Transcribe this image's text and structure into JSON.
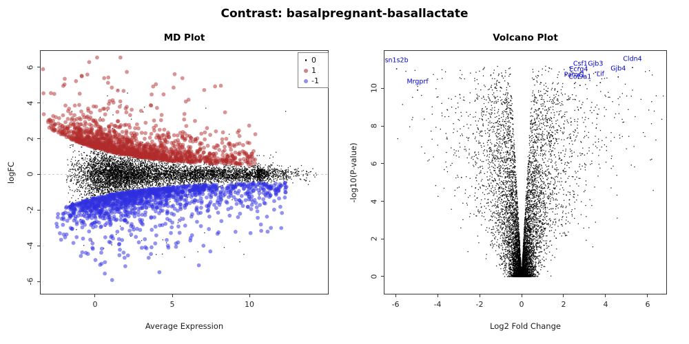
{
  "title": "Contrast: basalpregnant-basallactate",
  "colors": {
    "up_points": "rgba(178,44,44,0.5)",
    "down_points": "rgba(48,48,224,0.52)",
    "neutral_points": "rgba(0,0,0,0.9)",
    "gene_label": "#0000cc",
    "axis": "#333333",
    "tick_text": "#262626",
    "reference_line": "#cccccc",
    "legend_border": "#808080",
    "legend_up_swatch": "#cc8585",
    "legend_down_swatch": "#9090ee",
    "legend_neutral_swatch": "#000000"
  },
  "chart_data": [
    {
      "type": "scatter",
      "title": "MD Plot",
      "xlabel": "Average Expression",
      "ylabel": "logFC",
      "xlim": [
        -3.57,
        15.13
      ],
      "ylim": [
        -6.73,
        6.96
      ],
      "xticks": [
        0,
        5,
        10
      ],
      "yticks": [
        6,
        4,
        2,
        0,
        -2,
        -4,
        -6
      ],
      "grid": false,
      "reference_line": {
        "y": 0,
        "style": "dashed"
      },
      "legend": {
        "position": "top-right",
        "items": [
          {
            "label": "0",
            "marker": "point",
            "color": "#000000"
          },
          {
            "label": "1",
            "marker": "circle",
            "color": "#cc8585"
          },
          {
            "label": "-1",
            "marker": "circle",
            "color": "#9090ee"
          }
        ]
      },
      "series": [
        {
          "name": "0",
          "meaning": "not significant",
          "n": 7000,
          "x_range": [
            -1.8,
            14.6
          ],
          "logfc_band": "dense black band around logFC 0, half-width about 1.4 at low expression shrinking to 0.4 at high expression"
        },
        {
          "name": "1",
          "meaning": "up-regulated",
          "n": 1500,
          "x_range": [
            -3.4,
            10.45
          ],
          "logfc_band": "0.5 to 6.5, dense red rim hugging the top of the black cloud, outliers to logFC 6.5"
        },
        {
          "name": "-1",
          "meaning": "down-regulated",
          "n": 1350,
          "x_range": [
            -2.6,
            12.5
          ],
          "logfc_band": "-0.45 to -6.2, dense blue rim hugging the bottom of the black cloud, outliers to logFC -6"
        }
      ],
      "seed": 42
    },
    {
      "type": "scatter",
      "title": "Volcano Plot",
      "xlabel": "Log2 Fold Change",
      "ylabel": "-log10(P-value)",
      "xlim": [
        -6.56,
        6.92
      ],
      "ylim": [
        -0.95,
        12.02
      ],
      "xticks": [
        -6,
        -4,
        -2,
        0,
        2,
        4,
        6
      ],
      "yticks": [
        0,
        2,
        4,
        6,
        8,
        10
      ],
      "grid": false,
      "n": 9500,
      "shape": "V-shaped black point cloud, dense vertex at (0,0), arms fanning out to |logFC| ~6.8 and -log10(P) ~11.3",
      "labeled_points": [
        {
          "label": "sn1s2b",
          "x": -5.95,
          "y": 11.48
        },
        {
          "label": "Mrgprf",
          "x": -4.95,
          "y": 10.35
        },
        {
          "label": "Csf1",
          "x": 2.8,
          "y": 11.3
        },
        {
          "label": "Gjb3",
          "x": 3.52,
          "y": 11.3
        },
        {
          "label": "Cldn4",
          "x": 5.28,
          "y": 11.55
        },
        {
          "label": "Ecrg4",
          "x": 2.72,
          "y": 10.98
        },
        {
          "label": "Gjb4",
          "x": 4.6,
          "y": 11.05
        },
        {
          "label": "Lif",
          "x": 3.75,
          "y": 10.75
        },
        {
          "label": "Pamr1",
          "x": 2.52,
          "y": 10.7
        },
        {
          "label": "Col9a1",
          "x": 2.78,
          "y": 10.6
        }
      ],
      "seed": 7
    }
  ]
}
